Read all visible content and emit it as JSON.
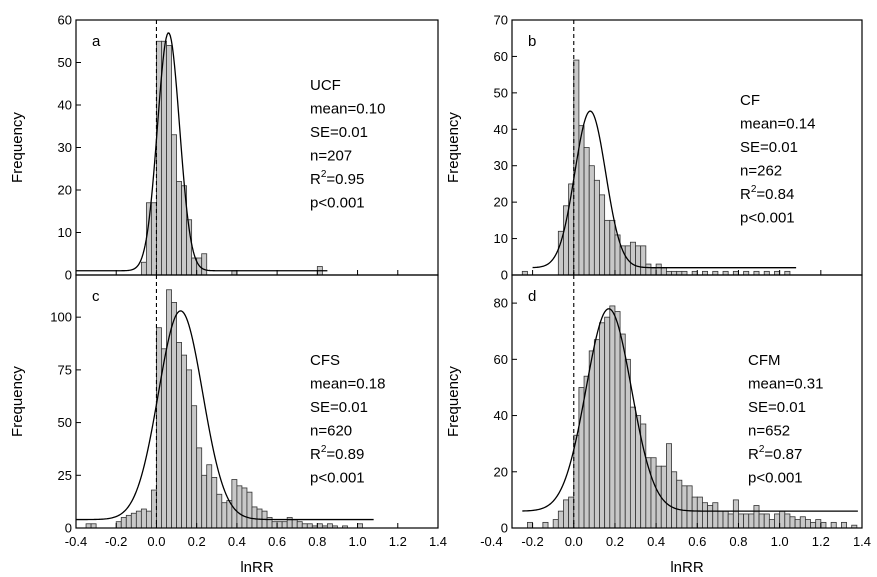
{
  "chart_data": [
    {
      "panel": "a",
      "type": "bar",
      "ylabel": "Frequency",
      "xlabel": "",
      "xlim": [
        -0.4,
        1.4
      ],
      "ylim": [
        0,
        60
      ],
      "xticks": [
        -0.4,
        -0.2,
        0.0,
        0.2,
        0.4,
        0.6,
        0.8,
        1.0,
        1.2,
        1.4
      ],
      "xtick_labels": [
        "-0.4",
        "-0.2",
        "0.0",
        "0.2",
        "0.4",
        "0.6",
        "0.8",
        "1.0",
        "1.2",
        "1.4"
      ],
      "show_xtick_labels": false,
      "yticks": [
        0,
        10,
        20,
        30,
        40,
        50,
        60
      ],
      "ytick_labels": [
        "0",
        "10",
        "20",
        "30",
        "40",
        "50",
        "60"
      ],
      "bin_width": 0.025,
      "bins": [
        {
          "x": -0.075,
          "y": 3
        },
        {
          "x": -0.05,
          "y": 17
        },
        {
          "x": -0.025,
          "y": 17
        },
        {
          "x": 0.0,
          "y": 55
        },
        {
          "x": 0.025,
          "y": 55
        },
        {
          "x": 0.05,
          "y": 54
        },
        {
          "x": 0.075,
          "y": 33
        },
        {
          "x": 0.1,
          "y": 22
        },
        {
          "x": 0.125,
          "y": 21
        },
        {
          "x": 0.15,
          "y": 13
        },
        {
          "x": 0.175,
          "y": 4
        },
        {
          "x": 0.2,
          "y": 4
        },
        {
          "x": 0.225,
          "y": 5
        },
        {
          "x": 0.375,
          "y": 1
        },
        {
          "x": 0.8,
          "y": 2
        }
      ],
      "fit": {
        "type": "gaussian",
        "mean": 0.06,
        "sd": 0.055,
        "peak": 57,
        "baseline": 1
      },
      "fit_range": [
        -0.4,
        0.85
      ],
      "reference_line_x": 0,
      "group": "UCF",
      "stats": [
        "mean=0.10",
        "SE=0.01",
        "n=207",
        "p<0.001"
      ],
      "r2_label": "R",
      "r2_superscript": "2",
      "r2_value": "=0.95"
    },
    {
      "panel": "b",
      "type": "bar",
      "ylabel": "Frequency",
      "xlabel": "",
      "xlim": [
        -0.3,
        1.4
      ],
      "ylim": [
        0,
        70
      ],
      "xticks": [
        -0.2,
        0.0,
        0.2,
        0.4,
        0.6,
        0.8,
        1.0,
        1.2,
        1.4
      ],
      "xtick_labels": [
        "-0.2",
        "0.0",
        "0.2",
        "0.4",
        "0.6",
        "0.8",
        "1.0",
        "1.2",
        "1.4"
      ],
      "show_xtick_labels": false,
      "yticks": [
        0,
        10,
        20,
        30,
        40,
        50,
        60,
        70
      ],
      "ytick_labels": [
        "0",
        "10",
        "20",
        "30",
        "40",
        "50",
        "60",
        "70"
      ],
      "bin_width": 0.025,
      "bins": [
        {
          "x": -0.25,
          "y": 1
        },
        {
          "x": -0.075,
          "y": 12
        },
        {
          "x": -0.05,
          "y": 19
        },
        {
          "x": -0.025,
          "y": 25
        },
        {
          "x": 0.0,
          "y": 59
        },
        {
          "x": 0.025,
          "y": 41
        },
        {
          "x": 0.05,
          "y": 35
        },
        {
          "x": 0.075,
          "y": 30
        },
        {
          "x": 0.1,
          "y": 26
        },
        {
          "x": 0.125,
          "y": 22
        },
        {
          "x": 0.15,
          "y": 15
        },
        {
          "x": 0.175,
          "y": 15
        },
        {
          "x": 0.2,
          "y": 11
        },
        {
          "x": 0.225,
          "y": 8
        },
        {
          "x": 0.25,
          "y": 8
        },
        {
          "x": 0.275,
          "y": 9
        },
        {
          "x": 0.3,
          "y": 8
        },
        {
          "x": 0.325,
          "y": 8
        },
        {
          "x": 0.35,
          "y": 3
        },
        {
          "x": 0.375,
          "y": 2
        },
        {
          "x": 0.4,
          "y": 3
        },
        {
          "x": 0.425,
          "y": 2
        },
        {
          "x": 0.45,
          "y": 1
        },
        {
          "x": 0.475,
          "y": 1
        },
        {
          "x": 0.5,
          "y": 1
        },
        {
          "x": 0.525,
          "y": 1
        },
        {
          "x": 0.575,
          "y": 1
        },
        {
          "x": 0.625,
          "y": 1
        },
        {
          "x": 0.675,
          "y": 1
        },
        {
          "x": 0.725,
          "y": 1
        },
        {
          "x": 0.775,
          "y": 1
        },
        {
          "x": 0.825,
          "y": 1
        },
        {
          "x": 0.875,
          "y": 1
        },
        {
          "x": 0.925,
          "y": 1
        },
        {
          "x": 0.975,
          "y": 1
        },
        {
          "x": 1.025,
          "y": 1
        }
      ],
      "fit": {
        "type": "gaussian",
        "mean": 0.08,
        "sd": 0.075,
        "peak": 45,
        "baseline": 2
      },
      "fit_range": [
        -0.2,
        1.08
      ],
      "reference_line_x": 0,
      "group": "CF",
      "stats": [
        "mean=0.14",
        "SE=0.01",
        "n=262",
        "p<0.001"
      ],
      "r2_label": "R",
      "r2_superscript": "2",
      "r2_value": "=0.84"
    },
    {
      "panel": "c",
      "type": "bar",
      "ylabel": "Frequency",
      "xlabel": "lnRR",
      "xlim": [
        -0.4,
        1.4
      ],
      "ylim": [
        0,
        120
      ],
      "xticks": [
        -0.4,
        -0.2,
        0.0,
        0.2,
        0.4,
        0.6,
        0.8,
        1.0,
        1.2,
        1.4
      ],
      "xtick_labels": [
        "-0.4",
        "-0.2",
        "0.0",
        "0.2",
        "0.4",
        "0.6",
        "0.8",
        "1.0",
        "1.2",
        "1.4"
      ],
      "show_xtick_labels": true,
      "yticks": [
        0,
        25,
        50,
        75,
        100
      ],
      "ytick_labels": [
        "0",
        "25",
        "50",
        "75",
        "100"
      ],
      "bin_width": 0.025,
      "bins": [
        {
          "x": -0.35,
          "y": 2
        },
        {
          "x": -0.325,
          "y": 2
        },
        {
          "x": -0.2,
          "y": 3
        },
        {
          "x": -0.175,
          "y": 5
        },
        {
          "x": -0.15,
          "y": 6
        },
        {
          "x": -0.125,
          "y": 7
        },
        {
          "x": -0.1,
          "y": 8
        },
        {
          "x": -0.075,
          "y": 9
        },
        {
          "x": -0.05,
          "y": 8
        },
        {
          "x": -0.025,
          "y": 18
        },
        {
          "x": 0.0,
          "y": 95
        },
        {
          "x": 0.025,
          "y": 85
        },
        {
          "x": 0.05,
          "y": 113
        },
        {
          "x": 0.075,
          "y": 107
        },
        {
          "x": 0.1,
          "y": 88
        },
        {
          "x": 0.125,
          "y": 82
        },
        {
          "x": 0.15,
          "y": 75
        },
        {
          "x": 0.175,
          "y": 58
        },
        {
          "x": 0.2,
          "y": 38
        },
        {
          "x": 0.225,
          "y": 25
        },
        {
          "x": 0.25,
          "y": 30
        },
        {
          "x": 0.275,
          "y": 24
        },
        {
          "x": 0.3,
          "y": 16
        },
        {
          "x": 0.325,
          "y": 12
        },
        {
          "x": 0.35,
          "y": 13
        },
        {
          "x": 0.375,
          "y": 23
        },
        {
          "x": 0.4,
          "y": 20
        },
        {
          "x": 0.425,
          "y": 19
        },
        {
          "x": 0.45,
          "y": 17
        },
        {
          "x": 0.475,
          "y": 10
        },
        {
          "x": 0.5,
          "y": 9
        },
        {
          "x": 0.525,
          "y": 8
        },
        {
          "x": 0.55,
          "y": 5
        },
        {
          "x": 0.575,
          "y": 3
        },
        {
          "x": 0.6,
          "y": 3
        },
        {
          "x": 0.625,
          "y": 3
        },
        {
          "x": 0.65,
          "y": 5
        },
        {
          "x": 0.675,
          "y": 4
        },
        {
          "x": 0.7,
          "y": 3
        },
        {
          "x": 0.725,
          "y": 2
        },
        {
          "x": 0.75,
          "y": 2
        },
        {
          "x": 0.775,
          "y": 1
        },
        {
          "x": 0.8,
          "y": 2
        },
        {
          "x": 0.825,
          "y": 1
        },
        {
          "x": 0.85,
          "y": 2
        },
        {
          "x": 0.875,
          "y": 1
        },
        {
          "x": 0.925,
          "y": 1
        },
        {
          "x": 1.0,
          "y": 2
        }
      ],
      "fit": {
        "type": "gaussian",
        "mean": 0.12,
        "sd": 0.11,
        "peak": 103,
        "baseline": 4
      },
      "fit_range": [
        -0.4,
        1.08
      ],
      "reference_line_x": 0,
      "group": "CFS",
      "stats": [
        "mean=0.18",
        "SE=0.01",
        "n=620",
        "p<0.001"
      ],
      "r2_label": "R",
      "r2_superscript": "2",
      "r2_value": "=0.89"
    },
    {
      "panel": "d",
      "type": "bar",
      "ylabel": "Frequency",
      "xlabel": "lnRR",
      "xlim": [
        -0.3,
        1.4
      ],
      "ylim": [
        0,
        90
      ],
      "xticks": [
        -0.4,
        -0.2,
        0.0,
        0.2,
        0.4,
        0.6,
        0.8,
        1.0,
        1.2,
        1.4
      ],
      "xtick_labels": [
        "-0.4",
        "-0.2",
        "0.0",
        "0.2",
        "0.4",
        "0.6",
        "0.8",
        "1.0",
        "1.2",
        "1.4"
      ],
      "show_xtick_labels": true,
      "yticks": [
        0,
        20,
        40,
        60,
        80
      ],
      "ytick_labels": [
        "0",
        "20",
        "40",
        "60",
        "80"
      ],
      "bin_width": 0.025,
      "bins": [
        {
          "x": -0.225,
          "y": 2
        },
        {
          "x": -0.15,
          "y": 2
        },
        {
          "x": -0.1,
          "y": 3
        },
        {
          "x": -0.075,
          "y": 6
        },
        {
          "x": -0.05,
          "y": 10
        },
        {
          "x": -0.025,
          "y": 11
        },
        {
          "x": 0.0,
          "y": 33
        },
        {
          "x": 0.025,
          "y": 50
        },
        {
          "x": 0.05,
          "y": 54
        },
        {
          "x": 0.075,
          "y": 63
        },
        {
          "x": 0.1,
          "y": 67
        },
        {
          "x": 0.125,
          "y": 73
        },
        {
          "x": 0.15,
          "y": 75
        },
        {
          "x": 0.175,
          "y": 79
        },
        {
          "x": 0.2,
          "y": 77
        },
        {
          "x": 0.225,
          "y": 69
        },
        {
          "x": 0.25,
          "y": 60
        },
        {
          "x": 0.275,
          "y": 43
        },
        {
          "x": 0.3,
          "y": 40
        },
        {
          "x": 0.325,
          "y": 37
        },
        {
          "x": 0.35,
          "y": 25
        },
        {
          "x": 0.375,
          "y": 25
        },
        {
          "x": 0.4,
          "y": 22
        },
        {
          "x": 0.425,
          "y": 22
        },
        {
          "x": 0.45,
          "y": 30
        },
        {
          "x": 0.475,
          "y": 20
        },
        {
          "x": 0.5,
          "y": 17
        },
        {
          "x": 0.525,
          "y": 15
        },
        {
          "x": 0.55,
          "y": 15
        },
        {
          "x": 0.575,
          "y": 11
        },
        {
          "x": 0.6,
          "y": 11
        },
        {
          "x": 0.625,
          "y": 9
        },
        {
          "x": 0.65,
          "y": 8
        },
        {
          "x": 0.675,
          "y": 9
        },
        {
          "x": 0.7,
          "y": 6
        },
        {
          "x": 0.725,
          "y": 6
        },
        {
          "x": 0.75,
          "y": 5
        },
        {
          "x": 0.775,
          "y": 10
        },
        {
          "x": 0.8,
          "y": 5
        },
        {
          "x": 0.825,
          "y": 5
        },
        {
          "x": 0.85,
          "y": 5
        },
        {
          "x": 0.875,
          "y": 8
        },
        {
          "x": 0.9,
          "y": 5
        },
        {
          "x": 0.925,
          "y": 5
        },
        {
          "x": 0.95,
          "y": 3
        },
        {
          "x": 0.975,
          "y": 5
        },
        {
          "x": 1.0,
          "y": 6
        },
        {
          "x": 1.025,
          "y": 5
        },
        {
          "x": 1.05,
          "y": 4
        },
        {
          "x": 1.075,
          "y": 3
        },
        {
          "x": 1.1,
          "y": 4
        },
        {
          "x": 1.125,
          "y": 3
        },
        {
          "x": 1.15,
          "y": 2
        },
        {
          "x": 1.175,
          "y": 3
        },
        {
          "x": 1.2,
          "y": 2
        },
        {
          "x": 1.25,
          "y": 2
        },
        {
          "x": 1.3,
          "y": 2
        },
        {
          "x": 1.35,
          "y": 1
        }
      ],
      "fit": {
        "type": "gaussian",
        "mean": 0.17,
        "sd": 0.11,
        "peak": 78,
        "baseline": 6
      },
      "fit_range": [
        -0.25,
        1.38
      ],
      "reference_line_x": 0,
      "group": "CFM",
      "stats": [
        "mean=0.31",
        "SE=0.01",
        "n=652",
        "p<0.001"
      ],
      "r2_label": "R",
      "r2_superscript": "2",
      "r2_value": "=0.87"
    }
  ]
}
